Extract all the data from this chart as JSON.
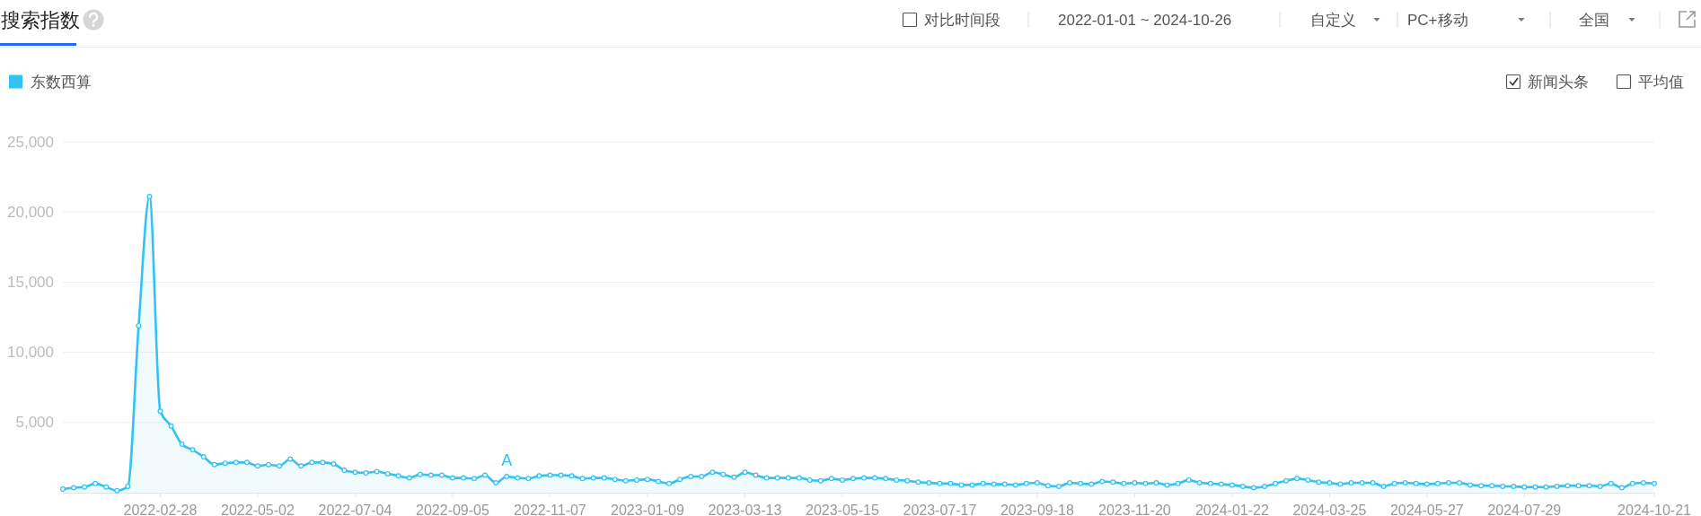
{
  "chart_data": {
    "type": "area",
    "title": "搜索指数",
    "x": [
      "2021-12-27",
      "2022-01-03",
      "2022-01-10",
      "2022-01-17",
      "2022-01-24",
      "2022-01-31",
      "2022-02-07",
      "2022-02-14",
      "2022-02-21",
      "2022-02-28",
      "2022-03-07",
      "2022-03-14",
      "2022-03-21",
      "2022-03-28",
      "2022-04-04",
      "2022-04-11",
      "2022-04-18",
      "2022-04-25",
      "2022-05-02",
      "2022-05-09",
      "2022-05-16",
      "2022-05-23",
      "2022-05-30",
      "2022-06-06",
      "2022-06-13",
      "2022-06-20",
      "2022-06-27",
      "2022-07-04",
      "2022-07-11",
      "2022-07-18",
      "2022-07-25",
      "2022-08-01",
      "2022-08-08",
      "2022-08-15",
      "2022-08-22",
      "2022-08-29",
      "2022-09-05",
      "2022-09-12",
      "2022-09-19",
      "2022-09-26",
      "2022-10-03",
      "2022-10-10",
      "2022-10-17",
      "2022-10-24",
      "2022-10-31",
      "2022-11-07",
      "2022-11-14",
      "2022-11-21",
      "2022-11-28",
      "2022-12-05",
      "2022-12-12",
      "2022-12-19",
      "2022-12-26",
      "2023-01-02",
      "2023-01-09",
      "2023-01-16",
      "2023-01-23",
      "2023-01-30",
      "2023-02-06",
      "2023-02-13",
      "2023-02-20",
      "2023-02-27",
      "2023-03-06",
      "2023-03-13",
      "2023-03-20",
      "2023-03-27",
      "2023-04-03",
      "2023-04-10",
      "2023-04-17",
      "2023-04-24",
      "2023-05-01",
      "2023-05-08",
      "2023-05-15",
      "2023-05-22",
      "2023-05-29",
      "2023-06-05",
      "2023-06-12",
      "2023-06-19",
      "2023-06-26",
      "2023-07-03",
      "2023-07-10",
      "2023-07-17",
      "2023-07-24",
      "2023-07-31",
      "2023-08-07",
      "2023-08-14",
      "2023-08-21",
      "2023-08-28",
      "2023-09-04",
      "2023-09-11",
      "2023-09-18",
      "2023-09-25",
      "2023-10-02",
      "2023-10-09",
      "2023-10-16",
      "2023-10-23",
      "2023-10-30",
      "2023-11-06",
      "2023-11-13",
      "2023-11-20",
      "2023-11-27",
      "2023-12-04",
      "2023-12-11",
      "2023-12-18",
      "2023-12-25",
      "2024-01-01",
      "2024-01-08",
      "2024-01-15",
      "2024-01-22",
      "2024-01-29",
      "2024-02-05",
      "2024-02-12",
      "2024-02-19",
      "2024-02-26",
      "2024-03-04",
      "2024-03-11",
      "2024-03-18",
      "2024-03-25",
      "2024-04-01",
      "2024-04-08",
      "2024-04-15",
      "2024-04-22",
      "2024-04-29",
      "2024-05-06",
      "2024-05-13",
      "2024-05-20",
      "2024-05-27",
      "2024-06-03",
      "2024-06-10",
      "2024-06-17",
      "2024-06-24",
      "2024-07-01",
      "2024-07-08",
      "2024-07-15",
      "2024-07-22",
      "2024-07-29",
      "2024-08-05",
      "2024-08-12",
      "2024-08-19",
      "2024-08-26",
      "2024-09-02",
      "2024-09-09",
      "2024-09-16",
      "2024-09-23",
      "2024-09-30",
      "2024-10-07",
      "2024-10-14",
      "2024-10-21"
    ],
    "series": [
      {
        "name": "东数西算",
        "color": "#33c3f3",
        "values": [
          250,
          350,
          400,
          650,
          400,
          150,
          450,
          11900,
          21100,
          5800,
          4750,
          3450,
          3050,
          2550,
          2000,
          2100,
          2150,
          2150,
          1900,
          2000,
          1900,
          2400,
          1900,
          2150,
          2150,
          2050,
          1600,
          1450,
          1400,
          1500,
          1350,
          1200,
          1050,
          1300,
          1250,
          1250,
          1050,
          1050,
          1000,
          1250,
          700,
          1150,
          1050,
          1000,
          1200,
          1250,
          1250,
          1200,
          1000,
          1050,
          1050,
          950,
          850,
          900,
          950,
          800,
          650,
          950,
          1150,
          1150,
          1450,
          1300,
          1100,
          1450,
          1250,
          1050,
          1050,
          1050,
          1050,
          900,
          850,
          1000,
          900,
          1000,
          1050,
          1050,
          1000,
          900,
          850,
          750,
          700,
          650,
          650,
          550,
          550,
          650,
          600,
          600,
          550,
          650,
          700,
          500,
          450,
          700,
          650,
          600,
          800,
          750,
          650,
          700,
          650,
          700,
          550,
          650,
          900,
          700,
          650,
          600,
          550,
          450,
          350,
          450,
          650,
          850,
          1000,
          900,
          750,
          700,
          600,
          700,
          700,
          700,
          450,
          650,
          700,
          650,
          600,
          650,
          700,
          700,
          550,
          500,
          500,
          450,
          450,
          400,
          400,
          400,
          450,
          500,
          500,
          500,
          450,
          650,
          350,
          650,
          700,
          650
        ]
      }
    ],
    "xlim": [
      "2021-12-27",
      "2024-10-21"
    ],
    "xticks": [
      "2022-02-28",
      "2022-05-02",
      "2022-07-04",
      "2022-09-05",
      "2022-11-07",
      "2023-01-09",
      "2023-03-13",
      "2023-05-15",
      "2023-07-17",
      "2023-09-18",
      "2023-11-20",
      "2024-01-22",
      "2024-03-25",
      "2024-05-27",
      "2024-07-29",
      "2024-10-21"
    ],
    "ylim": [
      0,
      25000
    ],
    "yticks": [
      {
        "value": 5000,
        "label": "5,000"
      },
      {
        "value": 10000,
        "label": "10,000"
      },
      {
        "value": 15000,
        "label": "15,000"
      },
      {
        "value": 20000,
        "label": "20,000"
      },
      {
        "value": 25000,
        "label": "25,000"
      }
    ],
    "grid": "y",
    "legend": "top left",
    "marker": "circle",
    "annotations": [
      "对比时间段",
      "2022-01-01 ~ 2024-10-26",
      "自定义",
      "PC+移动",
      "全国",
      "新闻头条",
      "平均值",
      {
        "text": "A",
        "x": "2022-10-10",
        "y": 1150
      }
    ]
  }
}
